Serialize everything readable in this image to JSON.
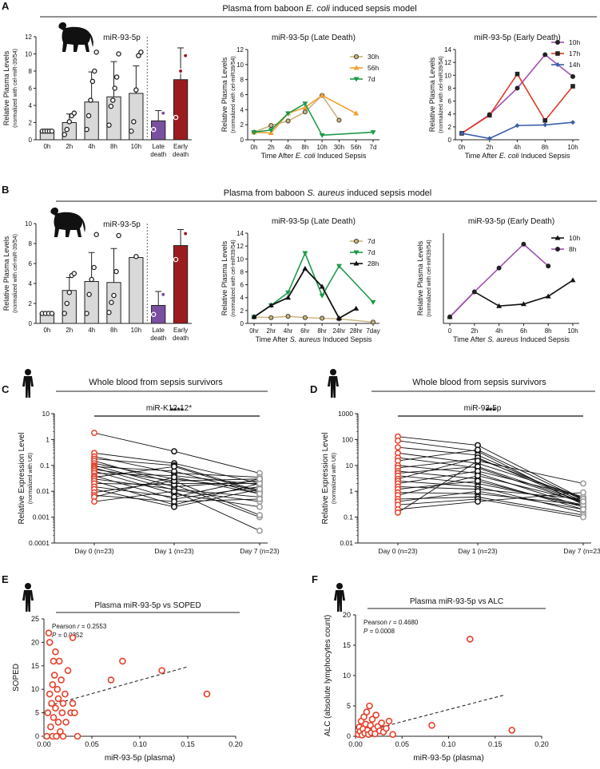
{
  "panels": {
    "A": {
      "letter": "A",
      "title_pre": "Plasma from baboon ",
      "title_em": "E. coli",
      "title_post": " induced sepsis model"
    },
    "B": {
      "letter": "B",
      "title_pre": "Plasma from baboon ",
      "title_em": "S. aureus",
      "title_post": " induced sepsis model"
    },
    "C": {
      "letter": "C",
      "title": "Whole blood from sepsis survivors"
    },
    "D": {
      "letter": "D",
      "title": "Whole blood from sepsis survivors"
    },
    "E": {
      "letter": "E"
    },
    "F": {
      "letter": "F"
    }
  },
  "colors": {
    "gray": "#d9d9d9",
    "purple": "#7b4fa0",
    "darkred": "#9b1c1f",
    "tan": "#c9b27a",
    "orange": "#f0a030",
    "green": "#1e9a4b",
    "red_sq": "#e03a24",
    "blue": "#3a5fa8",
    "violet": "#a050b0",
    "red_pt": "#e5402a"
  },
  "chart_data": [
    {
      "id": "A1",
      "type": "bar",
      "title": "miR-93-5p",
      "ylabel": "Relative Plasma Levels",
      "ylabel2": "(normalized with cel-miR-39/54)",
      "ylim": [
        0,
        12
      ],
      "yticks": [
        0,
        2,
        4,
        6,
        8,
        10,
        12
      ],
      "categories": [
        "0h",
        "2h",
        "4h",
        "8h",
        "10h",
        "Late\ndeath",
        "Early\ndeath"
      ],
      "values": [
        1.0,
        2.0,
        4.4,
        5.0,
        5.4,
        2.2,
        7.0
      ],
      "errors": [
        0.1,
        1.0,
        3.5,
        4.1,
        3.2,
        1.2,
        3.7
      ],
      "points": [
        [
          1,
          1,
          1,
          1,
          1
        ],
        [
          0.6,
          1.2,
          2.1,
          2.8,
          3.1
        ],
        [
          1.2,
          2.8,
          4.6,
          6.8,
          8.0,
          10.2
        ],
        [
          1.7,
          3.9,
          4.6,
          6.0,
          7.3,
          10.0
        ],
        [
          1.0,
          2.1,
          5.8,
          9.8,
          10.2
        ],
        [
          1.2,
          3.1
        ],
        [
          2.6,
          8.0,
          9.8
        ]
      ]
    },
    {
      "id": "A2",
      "type": "line",
      "title": "miR-93-5p (Late Death)",
      "ylabel": "Relative Plasma Levels",
      "ylabel2": "(normalized with cel-miR39/54)",
      "xlabel_pre": "Time After ",
      "xlabel_em": "E. coli",
      "xlabel_post": " Induced Sepsis",
      "ylim": [
        0,
        12
      ],
      "yticks": [
        0,
        2,
        4,
        6,
        8,
        10,
        12
      ],
      "categories": [
        "0h",
        "2h",
        "4h",
        "8h",
        "10h",
        "30h",
        "56h",
        "7d"
      ],
      "series": [
        {
          "name": "30h",
          "values": [
            1.0,
            1.9,
            2.5,
            3.7,
            5.9,
            2.6,
            null,
            null
          ]
        },
        {
          "name": "56h",
          "values": [
            1.0,
            0.9,
            3.5,
            4.3,
            5.9,
            null,
            3.5,
            null
          ]
        },
        {
          "name": "7d",
          "values": [
            1.0,
            1.3,
            3.5,
            4.8,
            0.6,
            null,
            null,
            1.0
          ]
        }
      ]
    },
    {
      "id": "A3",
      "type": "line",
      "title": "miR-93-5p (Early Death)",
      "ylabel": "Relative Plasma Levels",
      "ylabel2": "(normalized with cel-miR39/54)",
      "xlabel_pre": "Time After ",
      "xlabel_em": "E. coli",
      "xlabel_post": " Induced Sepsis",
      "ylim": [
        0,
        14
      ],
      "yticks": [
        0,
        2,
        4,
        6,
        8,
        10,
        12,
        14
      ],
      "categories": [
        "0h",
        "2h",
        "4h",
        "8h",
        "10h"
      ],
      "series": [
        {
          "name": "10h",
          "values": [
            1.0,
            3.9,
            8.0,
            13.2,
            9.8
          ]
        },
        {
          "name": "17h",
          "values": [
            1.0,
            3.8,
            10.2,
            3.0,
            8.3
          ]
        },
        {
          "name": "14h",
          "values": [
            1.0,
            0.2,
            2.2,
            2.3,
            2.7
          ]
        }
      ]
    },
    {
      "id": "B1",
      "type": "bar",
      "title": "miR-93-5p",
      "ylabel": "Relative Plasma Levels",
      "ylabel2": "(normalized with cel-miR-39/54)",
      "ylim": [
        0,
        10
      ],
      "yticks": [
        0,
        2,
        4,
        6,
        8,
        10
      ],
      "categories": [
        "0h",
        "2h",
        "4h",
        "8h",
        "10h",
        "Late\ndeath",
        "Early\ndeath"
      ],
      "values": [
        1.0,
        3.3,
        4.2,
        4.1,
        6.6,
        1.8,
        7.8
      ],
      "errors": [
        0.1,
        1.3,
        2.9,
        3.4,
        0,
        1.4,
        1.6
      ],
      "points": [
        [
          1,
          1,
          1,
          1
        ],
        [
          1.0,
          2.0,
          3.1,
          4.8,
          5.0
        ],
        [
          1.0,
          2.9,
          4.4,
          5.6,
          8.9
        ],
        [
          1.1,
          2.1,
          2.8,
          5.2,
          8.8
        ],
        [
          6.7
        ],
        [
          0.9,
          2.9
        ],
        [
          6.4,
          9.0
        ]
      ]
    },
    {
      "id": "B2",
      "type": "line",
      "title": "miR-93-5p (Late Death)",
      "ylabel": "Relative Plasma Levels",
      "ylabel2": "(normalized with cel-miR39/54)",
      "xlabel_pre": "Time After ",
      "xlabel_em": "S. aureus",
      "xlabel_post": " Induced Sepsis",
      "ylim": [
        0,
        14
      ],
      "yticks": [
        0,
        2,
        4,
        6,
        8,
        10,
        12,
        14
      ],
      "categories": [
        "0hr",
        "2hr",
        "4hr",
        "6hr",
        "8hr",
        "24hr",
        "28hr",
        "7day"
      ],
      "series": [
        {
          "name": "7d",
          "values": [
            1.0,
            0.9,
            1.1,
            0.9,
            0.8,
            0.7,
            null,
            0.2
          ]
        },
        {
          "name": "7d",
          "values": [
            1.0,
            2.8,
            4.8,
            10.9,
            4.3,
            8.9,
            null,
            3.3
          ]
        },
        {
          "name": "28h",
          "values": [
            1.0,
            2.8,
            4.0,
            8.5,
            5.7,
            0.8,
            2.3,
            null
          ]
        }
      ]
    },
    {
      "id": "B3",
      "type": "line",
      "title": "miR-93-5p (Early Death)",
      "ylabel": "Relative Plasma Levels",
      "ylabel2": "(normalized with cel-miR39/54)",
      "xlabel_pre": "Time After ",
      "xlabel_em": "S. aureus",
      "xlabel_post": " Induced Sepsis",
      "ylim": [
        0,
        14
      ],
      "yticks": [],
      "categories": [
        "0",
        "2h",
        "4h",
        "6h",
        "8h",
        "10h"
      ],
      "series": [
        {
          "name": "10h",
          "values": [
            1.0,
            4.9,
            2.7,
            3.0,
            4.2,
            6.7
          ]
        },
        {
          "name": "8h",
          "values": [
            1.0,
            4.9,
            8.6,
            12.3,
            8.9,
            null
          ]
        }
      ]
    },
    {
      "id": "C",
      "type": "line",
      "title": "miR-K12-12*",
      "signif": "****",
      "ylabel": "Relative Expression Level",
      "ylabel2": "(normalized with U6)",
      "scale": "log",
      "ylim": [
        0.0001,
        10
      ],
      "yticks": [
        "0.0001",
        "0.001",
        "0.01",
        "0.1",
        "1",
        "10"
      ],
      "categories": [
        "Day 0 (n=23)",
        "Day 1 (n=23)",
        "Day 7 (n=23)"
      ],
      "paired": [
        [
          1.8,
          0.35,
          0.05
        ],
        [
          0.3,
          0.12,
          0.02
        ],
        [
          0.22,
          0.05,
          0.035
        ],
        [
          0.18,
          0.1,
          0.01
        ],
        [
          0.15,
          0.02,
          0.02
        ],
        [
          0.12,
          0.03,
          0.012
        ],
        [
          0.1,
          0.015,
          0.025
        ],
        [
          0.09,
          0.06,
          0.008
        ],
        [
          0.08,
          0.011,
          0.004
        ],
        [
          0.07,
          0.025,
          0.03
        ],
        [
          0.06,
          0.008,
          0.0025
        ],
        [
          0.05,
          0.04,
          0.018
        ],
        [
          0.04,
          0.005,
          0.015
        ],
        [
          0.035,
          0.09,
          0.009
        ],
        [
          0.03,
          0.012,
          0.006
        ],
        [
          0.025,
          0.003,
          0.02
        ],
        [
          0.02,
          0.018,
          0.001
        ],
        [
          0.015,
          0.006,
          0.03
        ],
        [
          0.012,
          0.0025,
          0.012
        ],
        [
          0.009,
          0.025,
          0.0012
        ],
        [
          0.007,
          0.004,
          0.005
        ],
        [
          0.006,
          0.035,
          0.008
        ],
        [
          0.004,
          0.01,
          0.0003
        ]
      ]
    },
    {
      "id": "D",
      "type": "line",
      "title": "miR-93-5p",
      "signif": "***",
      "ylabel": "Relative Expression Level",
      "ylabel2": "(normalized with U6)",
      "scale": "log",
      "ylim": [
        0.01,
        1000
      ],
      "yticks": [
        "0.01",
        "0.1",
        "1",
        "10",
        "100",
        "1000"
      ],
      "categories": [
        "Day 0 (n=23)",
        "Day 1 (n=23)",
        "Day 7 (n=23)"
      ],
      "paired": [
        [
          130,
          60,
          0.5
        ],
        [
          90,
          35,
          0.3
        ],
        [
          50,
          25,
          0.4
        ],
        [
          30,
          12,
          0.6
        ],
        [
          20,
          8,
          0.35
        ],
        [
          15,
          40,
          0.45
        ],
        [
          10,
          5,
          0.25
        ],
        [
          8,
          18,
          0.5
        ],
        [
          6,
          3,
          0.2
        ],
        [
          5,
          9,
          0.4
        ],
        [
          4,
          2,
          0.3
        ],
        [
          3,
          20,
          0.35
        ],
        [
          2.5,
          1.5,
          0.15
        ],
        [
          2,
          6,
          0.6
        ],
        [
          1.5,
          1.2,
          0.5
        ],
        [
          1.2,
          2.5,
          0.25
        ],
        [
          0.9,
          0.8,
          0.3
        ],
        [
          0.7,
          4,
          0.4
        ],
        [
          0.5,
          0.6,
          0.12
        ],
        [
          0.4,
          1,
          0.2
        ],
        [
          0.3,
          0.5,
          0.1
        ],
        [
          0.2,
          0.4,
          0.9
        ],
        [
          0.15,
          15,
          2.0
        ]
      ]
    },
    {
      "id": "E",
      "type": "scatter",
      "title": "Plasma miR-93-5p vs SOPED",
      "xlabel": "miR-93-5p (plasma)",
      "ylabel": "SOPED",
      "stat1_pre": "Pearson ",
      "stat1_em": "r",
      "stat1_post": " = 0.2553",
      "stat2_em": "P",
      "stat2_post": " = 0.0352",
      "xlim": [
        0,
        0.2
      ],
      "ylim": [
        0,
        25
      ],
      "xticks": [
        "0.00",
        "0.05",
        "0.10",
        "0.15",
        "0.20"
      ],
      "yticks": [
        "0",
        "5",
        "10",
        "15",
        "20",
        "25"
      ],
      "fit": [
        [
          0.005,
          6.5
        ],
        [
          0.15,
          14.8
        ]
      ],
      "points": [
        [
          0.003,
          0
        ],
        [
          0.004,
          5
        ],
        [
          0.005,
          22
        ],
        [
          0.006,
          20
        ],
        [
          0.006,
          9
        ],
        [
          0.007,
          2
        ],
        [
          0.008,
          7
        ],
        [
          0.009,
          11
        ],
        [
          0.009,
          0
        ],
        [
          0.01,
          16
        ],
        [
          0.01,
          4
        ],
        [
          0.011,
          13
        ],
        [
          0.012,
          18
        ],
        [
          0.012,
          6
        ],
        [
          0.013,
          0
        ],
        [
          0.014,
          10
        ],
        [
          0.015,
          3
        ],
        [
          0.015,
          8
        ],
        [
          0.016,
          16
        ],
        [
          0.017,
          1
        ],
        [
          0.018,
          12
        ],
        [
          0.019,
          5
        ],
        [
          0.02,
          7
        ],
        [
          0.02,
          0
        ],
        [
          0.022,
          9
        ],
        [
          0.023,
          3
        ],
        [
          0.025,
          14
        ],
        [
          0.028,
          5
        ],
        [
          0.03,
          21
        ],
        [
          0.03,
          7
        ],
        [
          0.032,
          5
        ],
        [
          0.035,
          0
        ],
        [
          0.07,
          12
        ],
        [
          0.082,
          16
        ],
        [
          0.123,
          14
        ],
        [
          0.17,
          9
        ]
      ]
    },
    {
      "id": "F",
      "type": "scatter",
      "title": "Plasma miR-93-5p vs ALC",
      "xlabel": "miR-93-5p (plasma)",
      "ylabel": "ALC (absolute lymphocytes count)",
      "stat1_pre": "Pearson ",
      "stat1_em": "r",
      "stat1_post": " = 0.4680",
      "stat2_em": "P",
      "stat2_post": " = 0.0008",
      "xlim": [
        0,
        0.2
      ],
      "ylim": [
        0,
        20
      ],
      "xticks": [
        "0.00",
        "0.05",
        "0.10",
        "0.15",
        "0.20"
      ],
      "yticks": [
        "0",
        "5",
        "10",
        "15",
        "20"
      ],
      "fit": [
        [
          0.01,
          0.8
        ],
        [
          0.16,
          6.8
        ]
      ],
      "points": [
        [
          0.003,
          0.3
        ],
        [
          0.004,
          1.5
        ],
        [
          0.005,
          0.8
        ],
        [
          0.006,
          2.5
        ],
        [
          0.007,
          0.2
        ],
        [
          0.008,
          1.2
        ],
        [
          0.009,
          3.2
        ],
        [
          0.01,
          0.5
        ],
        [
          0.011,
          2
        ],
        [
          0.012,
          4
        ],
        [
          0.013,
          1
        ],
        [
          0.014,
          0.3
        ],
        [
          0.015,
          5
        ],
        [
          0.016,
          1.8
        ],
        [
          0.017,
          0.6
        ],
        [
          0.018,
          2.8
        ],
        [
          0.02,
          1.2
        ],
        [
          0.021,
          0.4
        ],
        [
          0.022,
          3.5
        ],
        [
          0.024,
          1.6
        ],
        [
          0.026,
          0.9
        ],
        [
          0.028,
          2.2
        ],
        [
          0.03,
          0.7
        ],
        [
          0.033,
          1.3
        ],
        [
          0.036,
          2.5
        ],
        [
          0.04,
          0.3
        ],
        [
          0.082,
          1.8
        ],
        [
          0.123,
          16
        ],
        [
          0.168,
          1
        ]
      ]
    }
  ]
}
